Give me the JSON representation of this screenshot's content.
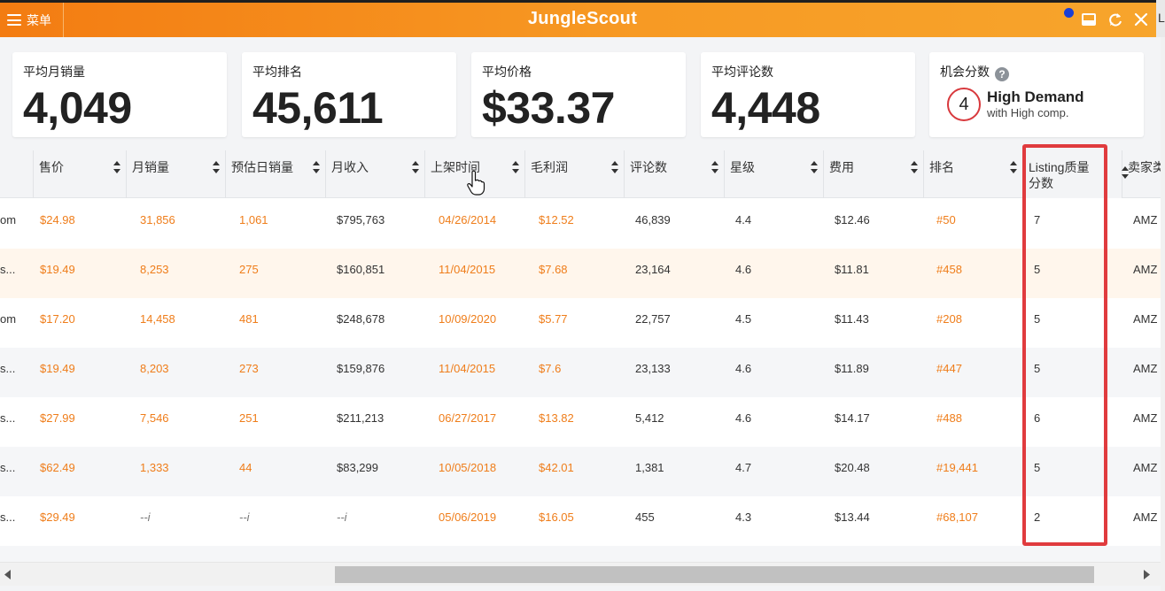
{
  "header": {
    "menu_label": "菜单",
    "brand": "JungleScout",
    "side_text": "L"
  },
  "stats": [
    {
      "label": "平均月销量",
      "value": "4,049"
    },
    {
      "label": "平均排名",
      "value": "45,611"
    },
    {
      "label": "平均价格",
      "value": "$33.37"
    },
    {
      "label": "平均评论数",
      "value": "4,448"
    }
  ],
  "opportunity": {
    "label": "机会分数",
    "help": "?",
    "score": "4",
    "title": "High Demand",
    "subtitle": "with High comp."
  },
  "columns": [
    {
      "key": "c0",
      "label": ""
    },
    {
      "key": "price",
      "label": "售价"
    },
    {
      "key": "monthly_sales",
      "label": "月销量"
    },
    {
      "key": "daily_sales",
      "label": "预估日销量"
    },
    {
      "key": "revenue",
      "label": "月收入"
    },
    {
      "key": "date",
      "label": "上架时间"
    },
    {
      "key": "margin",
      "label": "毛利润"
    },
    {
      "key": "reviews",
      "label": "评论数"
    },
    {
      "key": "rating",
      "label": "星级"
    },
    {
      "key": "fee",
      "label": "费用"
    },
    {
      "key": "rank",
      "label": "排名"
    },
    {
      "key": "lqs",
      "label": "Listing质量分数"
    },
    {
      "key": "seller",
      "label": "卖家类"
    }
  ],
  "rows": [
    {
      "c0": "om",
      "price": "$24.98",
      "monthly_sales": "31,856",
      "daily_sales": "1,061",
      "revenue": "$795,763",
      "date": "04/26/2014",
      "margin": "$12.52",
      "reviews": "46,839",
      "rating": "4.4",
      "fee": "$12.46",
      "rank": "#50",
      "lqs": "7",
      "seller": "AMZ"
    },
    {
      "c0": "s...",
      "price": "$19.49",
      "monthly_sales": "8,253",
      "daily_sales": "275",
      "revenue": "$160,851",
      "date": "11/04/2015",
      "margin": "$7.68",
      "reviews": "23,164",
      "rating": "4.6",
      "fee": "$11.81",
      "rank": "#458",
      "lqs": "5",
      "seller": "AMZ"
    },
    {
      "c0": "om",
      "price": "$17.20",
      "monthly_sales": "14,458",
      "daily_sales": "481",
      "revenue": "$248,678",
      "date": "10/09/2020",
      "margin": "$5.77",
      "reviews": "22,757",
      "rating": "4.5",
      "fee": "$11.43",
      "rank": "#208",
      "lqs": "5",
      "seller": "AMZ"
    },
    {
      "c0": "s...",
      "price": "$19.49",
      "monthly_sales": "8,203",
      "daily_sales": "273",
      "revenue": "$159,876",
      "date": "11/04/2015",
      "margin": "$7.6",
      "reviews": "23,133",
      "rating": "4.6",
      "fee": "$11.89",
      "rank": "#447",
      "lqs": "5",
      "seller": "AMZ"
    },
    {
      "c0": "s...",
      "price": "$27.99",
      "monthly_sales": "7,546",
      "daily_sales": "251",
      "revenue": "$211,213",
      "date": "06/27/2017",
      "margin": "$13.82",
      "reviews": "5,412",
      "rating": "4.6",
      "fee": "$14.17",
      "rank": "#488",
      "lqs": "6",
      "seller": "AMZ"
    },
    {
      "c0": "s...",
      "price": "$62.49",
      "monthly_sales": "1,333",
      "daily_sales": "44",
      "revenue": "$83,299",
      "date": "10/05/2018",
      "margin": "$42.01",
      "reviews": "1,381",
      "rating": "4.7",
      "fee": "$20.48",
      "rank": "#19,441",
      "lqs": "5",
      "seller": "AMZ"
    },
    {
      "c0": "s...",
      "price": "$29.49",
      "monthly_sales": "--i",
      "daily_sales": "--i",
      "revenue": "--i",
      "date": "05/06/2019",
      "margin": "$16.05",
      "reviews": "455",
      "rating": "4.3",
      "fee": "$13.44",
      "rank": "#68,107",
      "lqs": "2",
      "seller": "AMZ"
    }
  ],
  "colors": {
    "brand_orange": "#f37c12",
    "value_orange": "#ef7d1a",
    "highlight_red": "#e03b3e",
    "score_ring": "#d8393d"
  }
}
